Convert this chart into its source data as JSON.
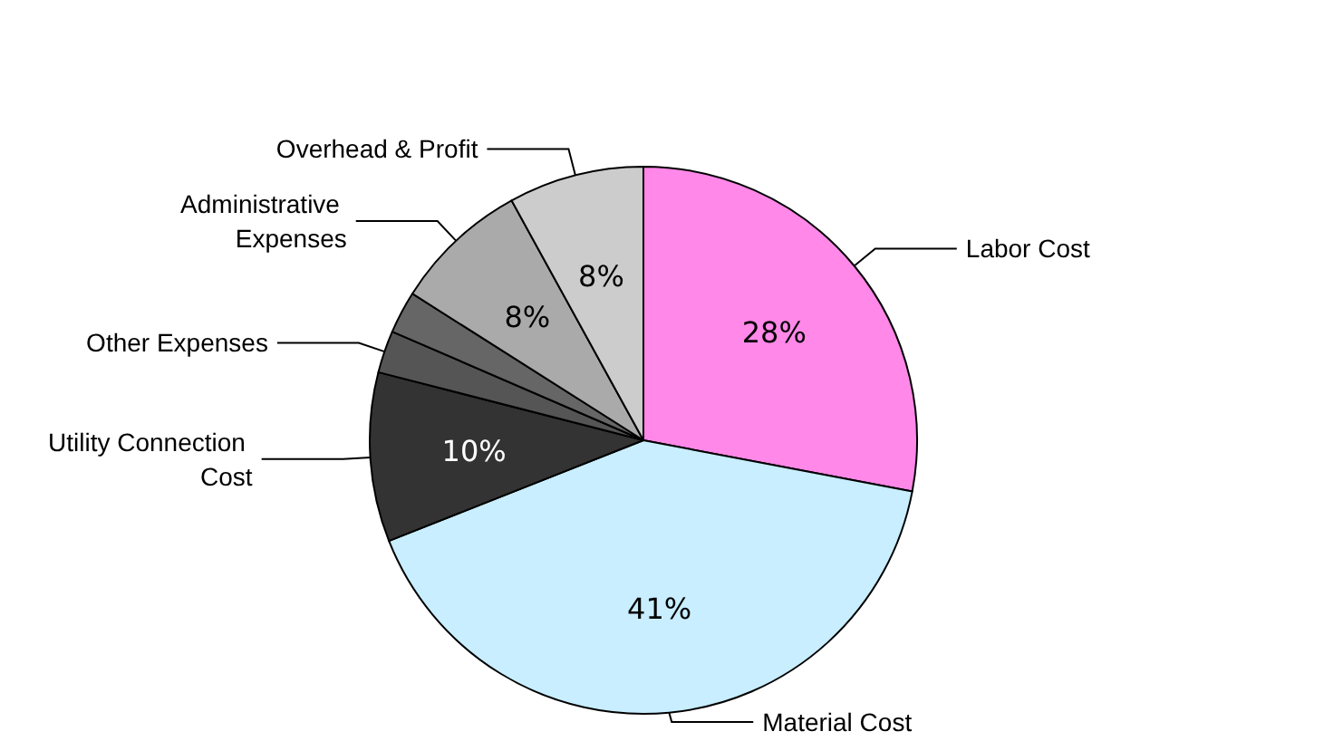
{
  "chart_data": {
    "type": "pie",
    "categories": [
      "Labor Cost",
      "Material Cost",
      "Utility Connection Cost",
      "Other Expenses",
      null,
      "Administrative Expenses",
      "Overhead & Profit"
    ],
    "values": [
      28,
      41,
      10,
      2.5,
      2.5,
      8,
      8
    ],
    "colors": [
      "#ff88e8",
      "#c8eeff",
      "#333333",
      "#555555",
      "#666666",
      "#aaaaaa",
      "#cccccc"
    ],
    "value_labels": [
      "28%",
      "41%",
      "10%",
      null,
      null,
      "8%",
      "8%"
    ]
  }
}
